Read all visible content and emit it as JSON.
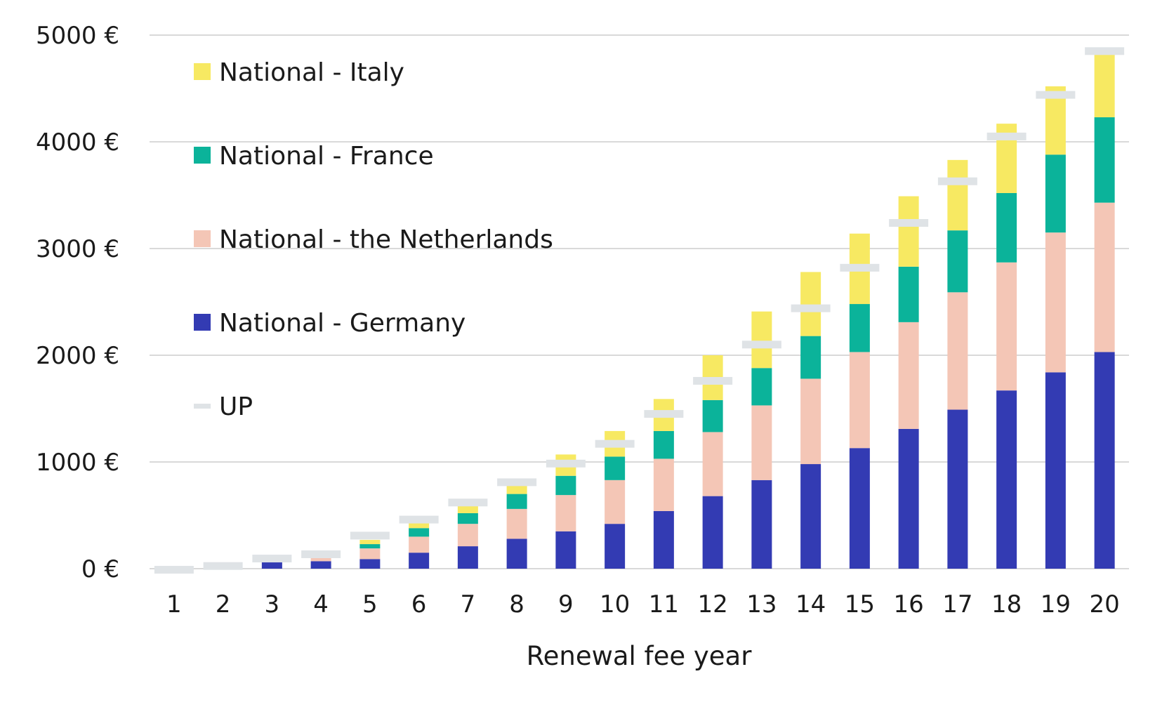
{
  "chart_data": {
    "type": "bar",
    "stacked": true,
    "xlabel": "Renewal fee year",
    "ylabel": "",
    "ylim": [
      0,
      5000
    ],
    "y_ticks": [
      0,
      1000,
      2000,
      3000,
      4000,
      5000
    ],
    "y_tick_labels": [
      "0 €",
      "1000 €",
      "2000 €",
      "3000 €",
      "4000 €",
      "5000 €"
    ],
    "grid": true,
    "legend_position": "top-left",
    "categories": [
      "1",
      "2",
      "3",
      "4",
      "5",
      "6",
      "7",
      "8",
      "9",
      "10",
      "11",
      "12",
      "13",
      "14",
      "15",
      "16",
      "17",
      "18",
      "19",
      "20"
    ],
    "series": [
      {
        "name": "National - Germany",
        "color": "#333bb3",
        "values": [
          0,
          0,
          70,
          70,
          90,
          150,
          210,
          280,
          350,
          420,
          540,
          680,
          830,
          980,
          1130,
          1310,
          1490,
          1670,
          1840,
          2030
        ]
      },
      {
        "name": "National - the Netherlands",
        "color": "#f4c6b6",
        "values": [
          0,
          0,
          0,
          30,
          100,
          150,
          210,
          280,
          340,
          410,
          490,
          600,
          700,
          800,
          900,
          1000,
          1100,
          1200,
          1310,
          1400
        ]
      },
      {
        "name": "National - France",
        "color": "#0bb39a",
        "values": [
          0,
          0,
          0,
          0,
          40,
          80,
          100,
          140,
          180,
          220,
          260,
          300,
          350,
          400,
          450,
          520,
          580,
          650,
          730,
          800
        ]
      },
      {
        "name": "National - Italy",
        "color": "#f7e962",
        "values": [
          0,
          0,
          0,
          0,
          40,
          60,
          80,
          100,
          200,
          240,
          300,
          420,
          530,
          600,
          660,
          660,
          660,
          650,
          640,
          600
        ]
      }
    ],
    "markers": {
      "name": "UP",
      "color": "#dfe3e6",
      "values": [
        -10,
        25,
        95,
        135,
        310,
        460,
        620,
        810,
        985,
        1170,
        1450,
        1760,
        2100,
        2440,
        2820,
        3240,
        3630,
        4050,
        4440,
        4850
      ]
    },
    "legend_order": [
      "National - Italy",
      "National - France",
      "National - the Netherlands",
      "National - Germany",
      "UP"
    ]
  }
}
